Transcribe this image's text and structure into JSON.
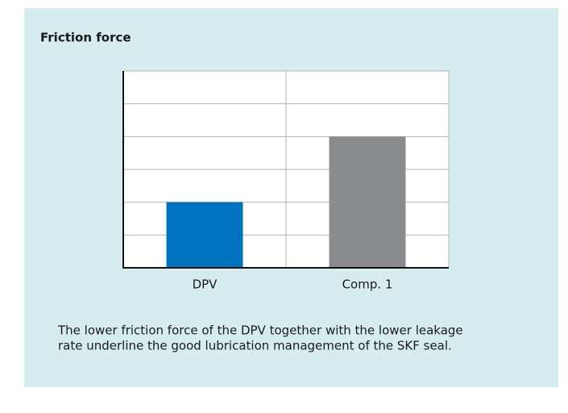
{
  "chart_data": {
    "type": "bar",
    "title": "Friction force",
    "categories": [
      "DPV",
      "Comp. 1"
    ],
    "series": [
      {
        "name": null,
        "values": [
          2,
          4
        ]
      }
    ],
    "colors": [
      "#0071bc",
      "#898b8d"
    ],
    "ylim": [
      0,
      6
    ],
    "yticks": [
      0,
      1,
      2,
      3,
      4,
      5,
      6
    ],
    "grid": true,
    "caption": [
      "The lower friction force of the DPV together with the lower leakage",
      "rate underline the good lubrication management of the SKF seal."
    ]
  }
}
